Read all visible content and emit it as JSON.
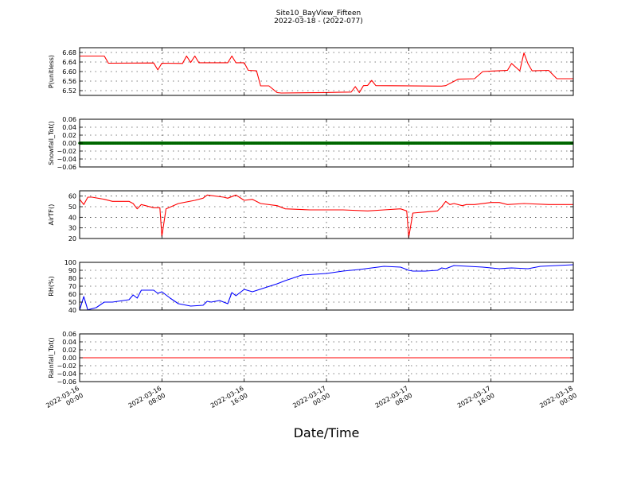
{
  "title": "Site10_BayView_Fifteen",
  "subtitle": "2022-03-18 - (2022-077)",
  "xlabel": "Date/Time",
  "x_ticks": [
    [
      "2022-03-16",
      "00:00"
    ],
    [
      "2022-03-16",
      "08:00"
    ],
    [
      "2022-03-16",
      "16:00"
    ],
    [
      "2022-03-17",
      "00:00"
    ],
    [
      "2022-03-17",
      "08:00"
    ],
    [
      "2022-03-17",
      "16:00"
    ],
    [
      "2022-03-18",
      "00:00"
    ]
  ],
  "chart_data": [
    {
      "type": "line",
      "ylabel": "P(unitless)",
      "ylim": [
        6.5,
        6.7
      ],
      "yticks": [
        "6.52",
        "6.56",
        "6.60",
        "6.64",
        "6.68"
      ],
      "grid": true,
      "color": "#ff0000",
      "series": [
        {
          "x": [
            "2022-03-16 00:00",
            "2022-03-16 02:24",
            "2022-03-16 02:48",
            "2022-03-16 07:12",
            "2022-03-16 07:36",
            "2022-03-16 08:00",
            "2022-03-16 10:00",
            "2022-03-16 10:24",
            "2022-03-16 10:48",
            "2022-03-16 11:12",
            "2022-03-16 11:36",
            "2022-03-16 14:24",
            "2022-03-16 14:48",
            "2022-03-16 15:12",
            "2022-03-16 16:00",
            "2022-03-16 16:24",
            "2022-03-16 17:12",
            "2022-03-16 17:36",
            "2022-03-16 18:24",
            "2022-03-16 19:12",
            "2022-03-16 19:36",
            "2022-03-17 00:00",
            "2022-03-17 01:12",
            "2022-03-17 02:24",
            "2022-03-17 02:48",
            "2022-03-17 03:12",
            "2022-03-17 03:36",
            "2022-03-17 04:00",
            "2022-03-17 04:24",
            "2022-03-17 04:48",
            "2022-03-17 10:48",
            "2022-03-17 11:12",
            "2022-03-17 11:36",
            "2022-03-17 12:48",
            "2022-03-17 14:24",
            "2022-03-17 15:12",
            "2022-03-17 16:00",
            "2022-03-17 17:36",
            "2022-03-17 18:00",
            "2022-03-17 18:48",
            "2022-03-17 19:12",
            "2022-03-17 19:36",
            "2022-03-17 20:00",
            "2022-03-17 21:36",
            "2022-03-17 22:24",
            "2022-03-18 00:00"
          ],
          "values": [
            6.665,
            6.665,
            6.635,
            6.636,
            6.607,
            6.635,
            6.634,
            6.665,
            6.638,
            6.665,
            6.637,
            6.637,
            6.665,
            6.637,
            6.637,
            6.605,
            6.603,
            6.54,
            6.54,
            6.512,
            6.51,
            6.512,
            6.513,
            6.514,
            6.537,
            6.512,
            6.541,
            6.542,
            6.563,
            6.541,
            6.539,
            6.539,
            6.541,
            6.568,
            6.57,
            6.6,
            6.602,
            6.605,
            6.634,
            6.603,
            6.678,
            6.632,
            6.603,
            6.605,
            6.57,
            6.57
          ]
        }
      ]
    },
    {
      "type": "line",
      "ylabel": "Snowfall_Tot()",
      "ylim": [
        -0.06,
        0.06
      ],
      "yticks": [
        "−0.06",
        "−0.04",
        "−0.02",
        "0.00",
        "0.02",
        "0.04",
        "0.06"
      ],
      "grid": true,
      "color": "#008000",
      "markers": true,
      "series": [
        {
          "x": [
            "2022-03-16 00:00",
            "2022-03-18 00:00"
          ],
          "values": [
            0,
            0
          ]
        }
      ]
    },
    {
      "type": "line",
      "ylabel": "AirTF()",
      "ylim": [
        20,
        65
      ],
      "yticks": [
        "20",
        "30",
        "40",
        "50",
        "60"
      ],
      "grid": true,
      "color": "#ff0000",
      "series": [
        {
          "x": [
            "2022-03-16 00:00",
            "2022-03-16 00:24",
            "2022-03-16 00:48",
            "2022-03-16 01:12",
            "2022-03-16 02:24",
            "2022-03-16 03:12",
            "2022-03-16 04:48",
            "2022-03-16 05:12",
            "2022-03-16 05:36",
            "2022-03-16 06:00",
            "2022-03-16 07:12",
            "2022-03-16 07:48",
            "2022-03-16 08:00",
            "2022-03-16 08:24",
            "2022-03-16 09:36",
            "2022-03-16 11:12",
            "2022-03-16 12:00",
            "2022-03-16 12:24",
            "2022-03-16 14:00",
            "2022-03-16 14:24",
            "2022-03-16 15:12",
            "2022-03-16 16:00",
            "2022-03-16 16:48",
            "2022-03-16 17:36",
            "2022-03-16 19:12",
            "2022-03-16 20:00",
            "2022-03-16 22:24",
            "2022-03-17 00:00",
            "2022-03-17 01:36",
            "2022-03-17 04:00",
            "2022-03-17 05:36",
            "2022-03-17 07:12",
            "2022-03-17 07:48",
            "2022-03-17 08:00",
            "2022-03-17 08:24",
            "2022-03-17 09:36",
            "2022-03-17 10:48",
            "2022-03-17 11:12",
            "2022-03-17 11:36",
            "2022-03-17 12:00",
            "2022-03-17 12:24",
            "2022-03-17 13:12",
            "2022-03-17 13:36",
            "2022-03-17 14:24",
            "2022-03-17 16:00",
            "2022-03-17 16:48",
            "2022-03-17 17:36",
            "2022-03-17 19:12",
            "2022-03-17 21:36",
            "2022-03-18 00:00"
          ],
          "values": [
            57,
            52,
            59,
            59,
            57,
            55,
            55,
            53,
            48,
            52,
            49,
            49,
            22,
            48,
            53,
            56,
            58,
            61,
            59,
            58,
            61,
            56,
            57,
            53,
            51,
            48,
            47,
            47,
            47,
            46,
            47,
            48,
            46,
            21,
            44,
            45,
            46,
            50,
            55,
            52,
            53,
            51,
            52,
            52,
            54,
            54,
            52,
            53,
            52,
            52
          ]
        }
      ]
    },
    {
      "type": "line",
      "ylabel": "RH(%)",
      "ylim": [
        40,
        100
      ],
      "yticks": [
        "40",
        "50",
        "60",
        "70",
        "80",
        "90",
        "100"
      ],
      "grid": true,
      "color": "#0000ff",
      "series": [
        {
          "x": [
            "2022-03-16 00:00",
            "2022-03-16 00:24",
            "2022-03-16 00:48",
            "2022-03-16 01:00",
            "2022-03-16 01:36",
            "2022-03-16 02:24",
            "2022-03-16 03:12",
            "2022-03-16 04:48",
            "2022-03-16 05:12",
            "2022-03-16 05:36",
            "2022-03-16 06:00",
            "2022-03-16 07:12",
            "2022-03-16 07:36",
            "2022-03-16 08:00",
            "2022-03-16 08:48",
            "2022-03-16 09:36",
            "2022-03-16 10:48",
            "2022-03-16 12:00",
            "2022-03-16 12:24",
            "2022-03-16 12:48",
            "2022-03-16 13:36",
            "2022-03-16 14:24",
            "2022-03-16 14:48",
            "2022-03-16 15:12",
            "2022-03-16 16:00",
            "2022-03-16 16:48",
            "2022-03-16 19:12",
            "2022-03-16 20:00",
            "2022-03-16 21:36",
            "2022-03-17 00:00",
            "2022-03-17 01:36",
            "2022-03-17 03:12",
            "2022-03-17 05:36",
            "2022-03-17 07:12",
            "2022-03-17 08:00",
            "2022-03-17 08:24",
            "2022-03-17 09:36",
            "2022-03-17 10:48",
            "2022-03-17 11:12",
            "2022-03-17 11:36",
            "2022-03-17 12:24",
            "2022-03-17 15:12",
            "2022-03-17 16:48",
            "2022-03-17 18:00",
            "2022-03-17 19:36",
            "2022-03-17 20:48",
            "2022-03-18 00:00"
          ],
          "values": [
            40,
            57,
            40,
            41,
            43,
            50,
            50,
            53,
            59,
            55,
            65,
            65,
            61,
            63,
            55,
            48,
            45,
            46,
            51,
            50,
            52,
            48,
            62,
            58,
            66,
            63,
            73,
            77,
            84,
            86,
            89,
            91,
            95,
            94,
            90,
            89,
            89,
            90,
            93,
            92,
            96,
            94,
            92,
            93,
            92,
            95,
            97
          ]
        }
      ]
    },
    {
      "type": "line",
      "ylabel": "Rainfall_Tot()",
      "ylim": [
        -0.06,
        0.06
      ],
      "yticks": [
        "−0.06",
        "−0.04",
        "−0.02",
        "0.00",
        "0.02",
        "0.04",
        "0.06"
      ],
      "grid": true,
      "color": "#ff0000",
      "series": [
        {
          "x": [
            "2022-03-16 00:00",
            "2022-03-18 00:00"
          ],
          "values": [
            0,
            0
          ]
        }
      ]
    }
  ]
}
